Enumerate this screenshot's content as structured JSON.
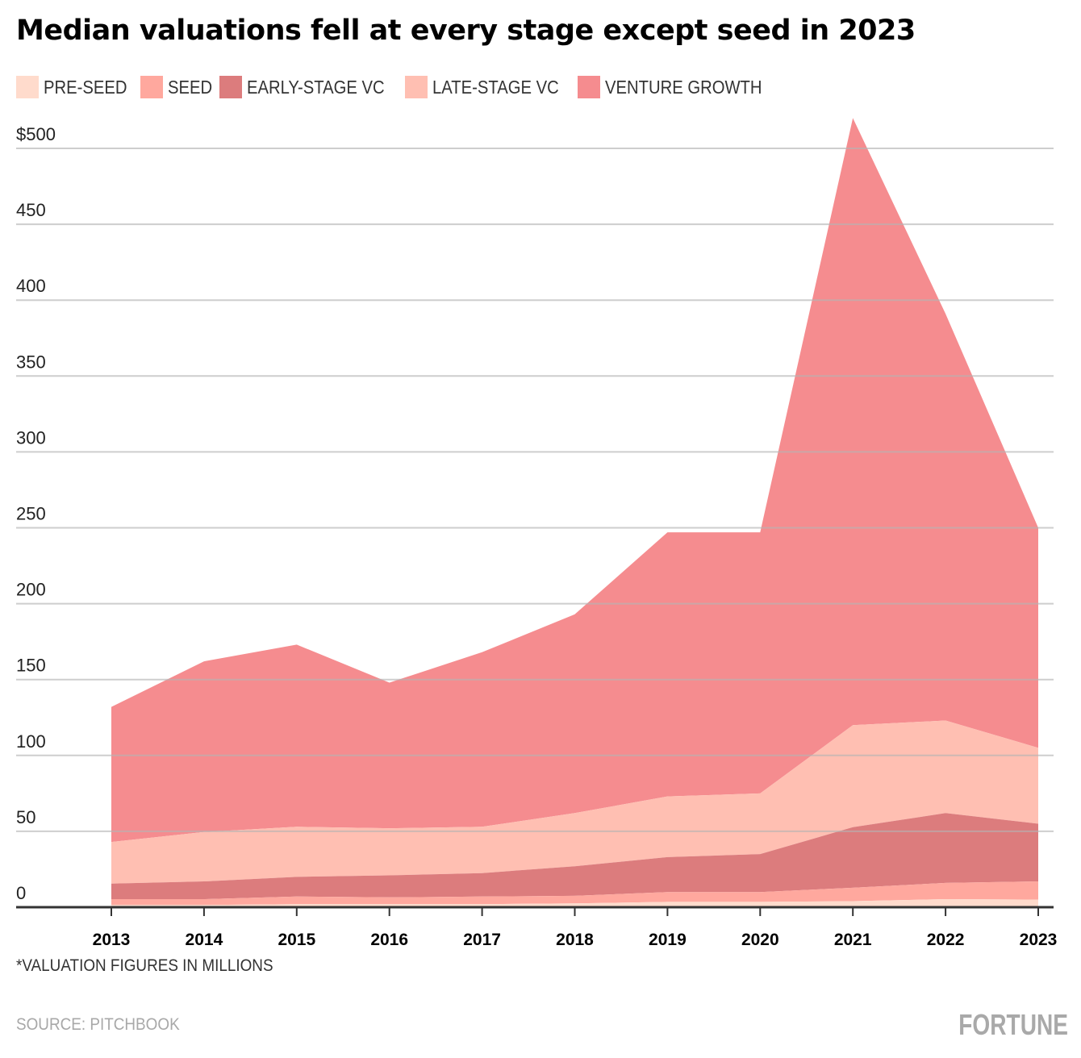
{
  "title": "Median valuations fell at every stage except seed in 2023",
  "legend": [
    {
      "label": "PRE-SEED",
      "color": "#ffdbcc"
    },
    {
      "label": "SEED",
      "color": "#ffa89e"
    },
    {
      "label": "EARLY-STAGE VC",
      "color": "#dc7c7d"
    },
    {
      "label": "LATE-STAGE VC",
      "color": "#ffbfb2"
    },
    {
      "label": "VENTURE GROWTH",
      "color": "#f58c8f"
    }
  ],
  "footnote": "*VALUATION FIGURES IN MILLIONS",
  "source": "SOURCE: PITCHBOOK",
  "brand": "FORTUNE",
  "chart_data": {
    "type": "area",
    "stacked": true,
    "title": "Median valuations fell at every stage except seed in 2023",
    "xlabel": "",
    "ylabel": "",
    "units": "USD millions",
    "x": [
      "2013",
      "2014",
      "2015",
      "2016",
      "2017",
      "2018",
      "2019",
      "2020",
      "2021",
      "2022",
      "2023"
    ],
    "ylim": [
      0,
      500
    ],
    "yticks": [
      0,
      50,
      100,
      150,
      200,
      250,
      300,
      350,
      400,
      450,
      500
    ],
    "ytick_labels": [
      "0",
      "50",
      "100",
      "150",
      "200",
      "250",
      "300",
      "350",
      "400",
      "450",
      "$500"
    ],
    "grid": true,
    "legend_position": "top-left",
    "series": [
      {
        "name": "PRE-SEED",
        "color": "#ffdbcc",
        "values": [
          1.5,
          1.5,
          2,
          2,
          2,
          2.5,
          3.5,
          3.5,
          4,
          5.3,
          5
        ]
      },
      {
        "name": "SEED",
        "color": "#ffa89e",
        "values": [
          3.8,
          3.8,
          5,
          4.5,
          5,
          5,
          6.5,
          6.5,
          8.8,
          10.7,
          12
        ]
      },
      {
        "name": "EARLY-STAGE VC",
        "color": "#dc7c7d",
        "values": [
          10.2,
          11.7,
          13,
          14.5,
          15.5,
          19.5,
          23,
          25,
          39.9,
          46,
          38
        ]
      },
      {
        "name": "LATE-STAGE VC",
        "color": "#ffbfb2",
        "values": [
          27.5,
          32.5,
          33,
          31,
          30.5,
          35,
          40,
          40,
          67.3,
          61,
          50
        ]
      },
      {
        "name": "VENTURE GROWTH",
        "color": "#f58c8f",
        "values": [
          89,
          112.5,
          120,
          96,
          115,
          131,
          174,
          172,
          400,
          268,
          145
        ]
      }
    ]
  }
}
